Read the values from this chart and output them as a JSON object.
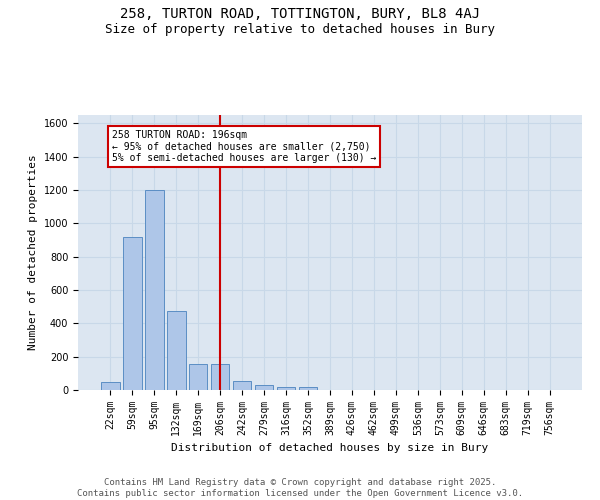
{
  "title_line1": "258, TURTON ROAD, TOTTINGTON, BURY, BL8 4AJ",
  "title_line2": "Size of property relative to detached houses in Bury",
  "xlabel": "Distribution of detached houses by size in Bury",
  "ylabel": "Number of detached properties",
  "categories": [
    "22sqm",
    "59sqm",
    "95sqm",
    "132sqm",
    "169sqm",
    "206sqm",
    "242sqm",
    "279sqm",
    "316sqm",
    "352sqm",
    "389sqm",
    "426sqm",
    "462sqm",
    "499sqm",
    "536sqm",
    "573sqm",
    "609sqm",
    "646sqm",
    "683sqm",
    "719sqm",
    "756sqm"
  ],
  "values": [
    50,
    920,
    1200,
    475,
    155,
    155,
    55,
    30,
    20,
    20,
    0,
    0,
    0,
    0,
    0,
    0,
    0,
    0,
    0,
    0,
    0
  ],
  "bar_color": "#aec6e8",
  "bar_edge_color": "#5b8ec4",
  "grid_color": "#c8d8e8",
  "background_color": "#dce6f1",
  "vline_color": "#cc0000",
  "vline_pos": 5.0,
  "annotation_text": "258 TURTON ROAD: 196sqm\n← 95% of detached houses are smaller (2,750)\n5% of semi-detached houses are larger (130) →",
  "annotation_box_edgecolor": "#cc0000",
  "footer": "Contains HM Land Registry data © Crown copyright and database right 2025.\nContains public sector information licensed under the Open Government Licence v3.0.",
  "ylim_max": 1650,
  "yticks": [
    0,
    200,
    400,
    600,
    800,
    1000,
    1200,
    1400,
    1600
  ],
  "title_fontsize": 10,
  "subtitle_fontsize": 9,
  "axis_fontsize": 8,
  "tick_fontsize": 7,
  "annot_fontsize": 7,
  "footer_fontsize": 6.5
}
